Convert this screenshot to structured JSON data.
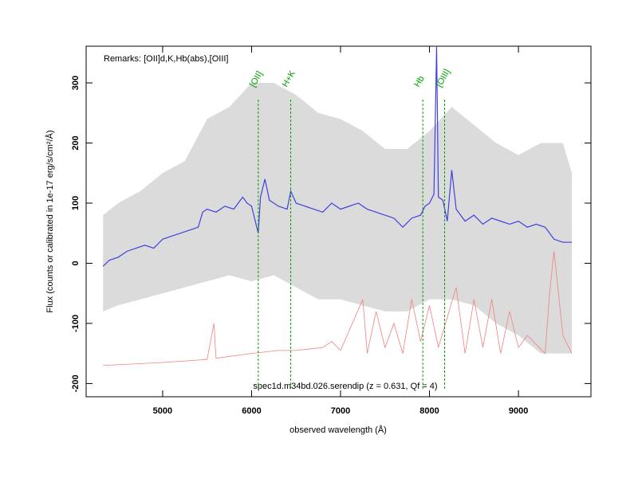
{
  "chart_data": {
    "type": "line",
    "xlabel": "observed wavelength (Å)",
    "ylabel": "Flux (counts or calibrated in 1e-17 erg/s/cm²/Å)",
    "remarks": "Remarks: [OII]d,K,Hb(abs),[OIII]",
    "caption": "spec1d.m34bd.026.serendip (z = 0.631, Qf = 4)",
    "xlim": [
      4140,
      9815
    ],
    "ylim": [
      -222,
      361
    ],
    "xticks": [
      5000,
      6000,
      7000,
      8000,
      9000
    ],
    "yticks": [
      -200,
      -100,
      0,
      100,
      200,
      300
    ],
    "band": {
      "color": "#cccccc",
      "x": [
        4330,
        4500,
        4750,
        5000,
        5250,
        5500,
        5750,
        6000,
        6250,
        6500,
        6750,
        7000,
        7250,
        7500,
        7750,
        8000,
        8250,
        8500,
        8750,
        9000,
        9250,
        9500,
        9600
      ],
      "lower": [
        -80,
        -70,
        -60,
        -50,
        -40,
        -30,
        -20,
        -30,
        -20,
        -40,
        -60,
        -60,
        -70,
        -80,
        -80,
        -60,
        -60,
        -70,
        -100,
        -120,
        -150,
        -150,
        -150
      ],
      "upper": [
        80,
        100,
        120,
        150,
        170,
        240,
        260,
        300,
        300,
        280,
        250,
        240,
        220,
        190,
        190,
        220,
        260,
        230,
        200,
        180,
        200,
        200,
        150
      ]
    },
    "series": [
      {
        "color": "#f08080",
        "x": [
          4330,
          5000,
          5500,
          5577,
          5600,
          6000,
          6300,
          6500,
          6800,
          6900,
          7000,
          7250,
          7300,
          7400,
          7500,
          7600,
          7700,
          7800,
          7900,
          8000,
          8100,
          8300,
          8400,
          8500,
          8600,
          8700,
          8800,
          8900,
          9000,
          9100,
          9300,
          9350,
          9400,
          9500,
          9600
        ],
        "values": [
          -170,
          -165,
          -160,
          -100,
          -158,
          -150,
          -145,
          -145,
          -140,
          -130,
          -145,
          -60,
          -150,
          -80,
          -140,
          -100,
          -150,
          -60,
          -130,
          -70,
          -140,
          -40,
          -150,
          -60,
          -140,
          -60,
          -150,
          -80,
          -140,
          -120,
          -150,
          -50,
          20,
          -120,
          -150
        ]
      },
      {
        "color": "#4040e0",
        "x": [
          4330,
          4400,
          4500,
          4600,
          4700,
          4800,
          4900,
          5000,
          5100,
          5200,
          5300,
          5400,
          5450,
          5500,
          5600,
          5700,
          5800,
          5900,
          5950,
          6000,
          6075,
          6100,
          6150,
          6200,
          6300,
          6400,
          6440,
          6500,
          6600,
          6700,
          6800,
          6900,
          7000,
          7100,
          7200,
          7300,
          7400,
          7500,
          7600,
          7700,
          7800,
          7900,
          7950,
          8000,
          8050,
          8080,
          8100,
          8150,
          8200,
          8250,
          8300,
          8400,
          8500,
          8600,
          8700,
          8800,
          8900,
          9000,
          9100,
          9200,
          9300,
          9400,
          9500,
          9600
        ],
        "values": [
          -5,
          5,
          10,
          20,
          25,
          30,
          25,
          40,
          45,
          50,
          55,
          60,
          85,
          90,
          85,
          95,
          90,
          110,
          100,
          95,
          50,
          110,
          140,
          105,
          95,
          90,
          120,
          100,
          95,
          90,
          85,
          100,
          90,
          95,
          100,
          90,
          85,
          80,
          75,
          60,
          75,
          80,
          95,
          100,
          115,
          360,
          110,
          105,
          70,
          155,
          90,
          70,
          80,
          65,
          75,
          70,
          65,
          70,
          60,
          65,
          60,
          40,
          35,
          35
        ]
      }
    ],
    "lines": {
      "color": "#00a000",
      "labels": [
        "[OII]",
        "H+K",
        "Hb",
        "[OIII]"
      ],
      "x": [
        6075,
        6440,
        7925,
        8170
      ]
    }
  }
}
